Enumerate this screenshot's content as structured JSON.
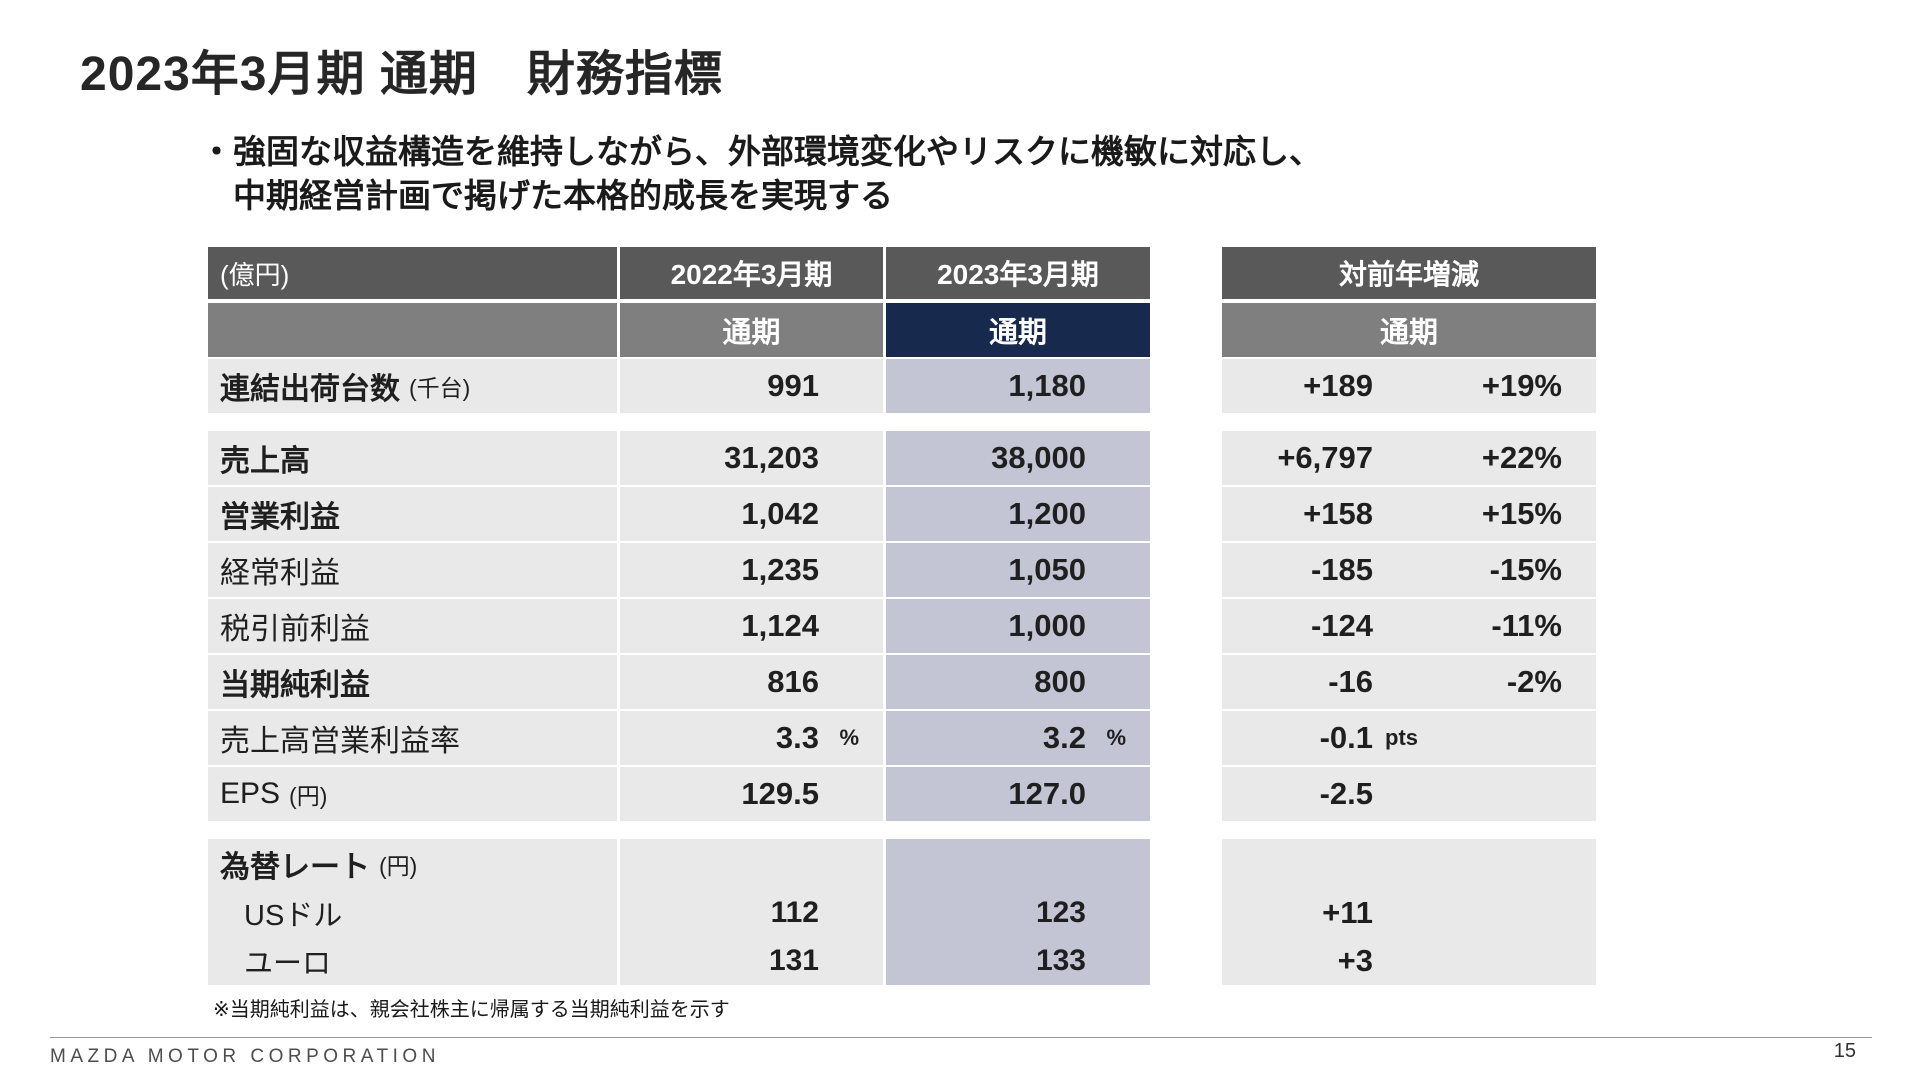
{
  "slide": {
    "title": "2023年3月期 通期　財務指標",
    "bullet": {
      "marker": "・",
      "line1": "強固な収益構造を維持しながら、外部環境変化やリスクに機敏に対応し、",
      "line2": "中期経営計画で掲げた本格的成長を実現する"
    },
    "footnote": "※当期純利益は、親会社株主に帰属する当期純利益を示す",
    "footer_brand": "MAZDA MOTOR CORPORATION",
    "page_number": "15"
  },
  "table": {
    "unit_label": "(億円)",
    "col_2022": "2022年3月期",
    "col_2023": "2023年3月期",
    "period_2022": "通期",
    "period_2023": "通期",
    "rows": [
      {
        "label": "連結出荷台数",
        "note": "(千台)",
        "y2022": "991",
        "y2023": "1,180",
        "diff": "+189",
        "diff_pct": "+19%"
      },
      {
        "label": "売上高",
        "y2022": "31,203",
        "y2023": "38,000",
        "diff": "+6,797",
        "diff_pct": "+22%"
      },
      {
        "label": "営業利益",
        "y2022": "1,042",
        "y2023": "1,200",
        "diff": "+158",
        "diff_pct": "+15%"
      },
      {
        "label": "経常利益",
        "y2022": "1,235",
        "y2023": "1,050",
        "diff": "-185",
        "diff_pct": "-15%"
      },
      {
        "label": "税引前利益",
        "y2022": "1,124",
        "y2023": "1,000",
        "diff": "-124",
        "diff_pct": "-11%"
      },
      {
        "label": "当期純利益",
        "y2022": "816",
        "y2023": "800",
        "diff": "-16",
        "diff_pct": "-2%"
      },
      {
        "label": "売上高営業利益率",
        "y2022": "3.3",
        "y2022_unit": "%",
        "y2023": "3.2",
        "y2023_unit": "%",
        "diff": "-0.1",
        "diff_unit": "pts"
      },
      {
        "label": "EPS",
        "note": "(円)",
        "y2022": "129.5",
        "y2023": "127.0",
        "diff": "-2.5"
      },
      {
        "label": "為替レート",
        "note": "(円)"
      },
      {
        "label": "USドル",
        "y2022": "112",
        "y2023": "123",
        "diff": "+11"
      },
      {
        "label": "ユーロ",
        "y2022": "131",
        "y2023": "133",
        "diff": "+3"
      }
    ]
  },
  "diff_table": {
    "header": "対前年増減",
    "period": "通期"
  },
  "colors": {
    "header_dark": "#595959",
    "header_gray": "#7f7f7f",
    "accent_navy": "#17294d",
    "row_gray": "#e9e9e9",
    "col2023_lavender": "#c4c5d4"
  }
}
